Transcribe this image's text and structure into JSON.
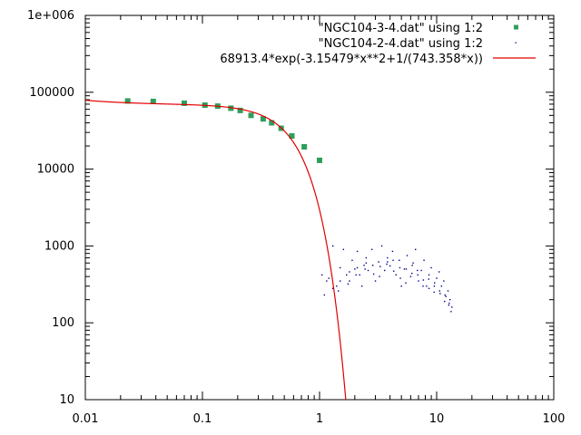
{
  "chart_data": {
    "type": "scatter",
    "x_scale": "log",
    "y_scale": "log",
    "xlim": [
      0.01,
      100
    ],
    "ylim": [
      10,
      1000000
    ],
    "x_ticks": [
      {
        "value": 0.01,
        "label": "0.01"
      },
      {
        "value": 0.1,
        "label": "0.1"
      },
      {
        "value": 1,
        "label": "1"
      },
      {
        "value": 10,
        "label": "10"
      },
      {
        "value": 100,
        "label": "100"
      }
    ],
    "y_ticks": [
      {
        "value": 10,
        "label": "10"
      },
      {
        "value": 100,
        "label": "100"
      },
      {
        "value": 1000,
        "label": "1000"
      },
      {
        "value": 10000,
        "label": "10000"
      },
      {
        "value": 100000,
        "label": "100000"
      },
      {
        "value": 1000000,
        "label": "1e+006"
      }
    ],
    "grid": false,
    "legend_position": "top-right",
    "series": [
      {
        "name": "\"NGC104-3-4.dat\" using 1:2",
        "kind": "points",
        "marker": "filled-square",
        "color": "#2e9e5b",
        "x": [
          0.023,
          0.038,
          0.07,
          0.105,
          0.135,
          0.175,
          0.21,
          0.26,
          0.33,
          0.39,
          0.47,
          0.58,
          0.74,
          1.0
        ],
        "y": [
          77000,
          76000,
          72000,
          68000,
          66000,
          62000,
          58000,
          50000,
          45000,
          40000,
          34000,
          27000,
          19500,
          13000
        ]
      },
      {
        "name": "\"NGC104-2-4.dat\" using 1:2",
        "kind": "points",
        "marker": "dot",
        "color": "#00008b",
        "x": [
          1.05,
          1.1,
          1.2,
          1.3,
          1.4,
          1.5,
          1.6,
          1.7,
          1.8,
          1.9,
          2.0,
          2.1,
          2.2,
          2.3,
          2.4,
          2.5,
          2.6,
          2.8,
          3.0,
          3.2,
          3.4,
          3.6,
          3.8,
          4.0,
          4.2,
          4.5,
          4.8,
          5.0,
          5.3,
          5.6,
          6.0,
          6.3,
          6.6,
          7.0,
          7.4,
          7.8,
          8.2,
          8.6,
          9.0,
          9.5,
          10.0,
          10.5,
          11.0,
          11.5,
          12.0,
          12.5,
          13.0,
          13.5,
          1.3,
          1.5,
          1.8,
          2.1,
          2.5,
          2.9,
          3.3,
          3.8,
          4.3,
          4.9,
          5.5,
          6.2,
          6.9,
          7.7,
          8.6,
          9.6,
          10.7,
          11.8,
          12.8,
          1.15,
          1.45,
          1.75,
          2.05,
          2.45,
          2.85,
          3.25,
          3.75,
          4.25,
          4.85,
          5.45,
          6.15,
          6.85,
          7.65,
          8.55,
          9.55,
          10.6,
          11.7,
          12.7,
          13.3
        ],
        "y": [
          420,
          230,
          380,
          1000,
          300,
          520,
          900,
          420,
          350,
          650,
          500,
          850,
          420,
          300,
          560,
          700,
          480,
          900,
          350,
          620,
          1000,
          480,
          700,
          550,
          850,
          420,
          650,
          300,
          500,
          750,
          400,
          600,
          900,
          350,
          480,
          650,
          300,
          420,
          520,
          250,
          380,
          460,
          300,
          350,
          220,
          260,
          200,
          160,
          280,
          350,
          460,
          520,
          600,
          430,
          540,
          620,
          470,
          380,
          500,
          560,
          420,
          360,
          280,
          330,
          240,
          230,
          180,
          350,
          260,
          320,
          420,
          500,
          560,
          400,
          580,
          650,
          520,
          330,
          440,
          480,
          300,
          370,
          300,
          260,
          190,
          170,
          140
        ]
      },
      {
        "name": "68913.4*exp(-3.15479*x**2+1/(743.358*x))",
        "kind": "line",
        "color": "#e00000",
        "formula": {
          "A": 68913.4,
          "b": 3.15479,
          "c": 743.358
        }
      }
    ]
  }
}
